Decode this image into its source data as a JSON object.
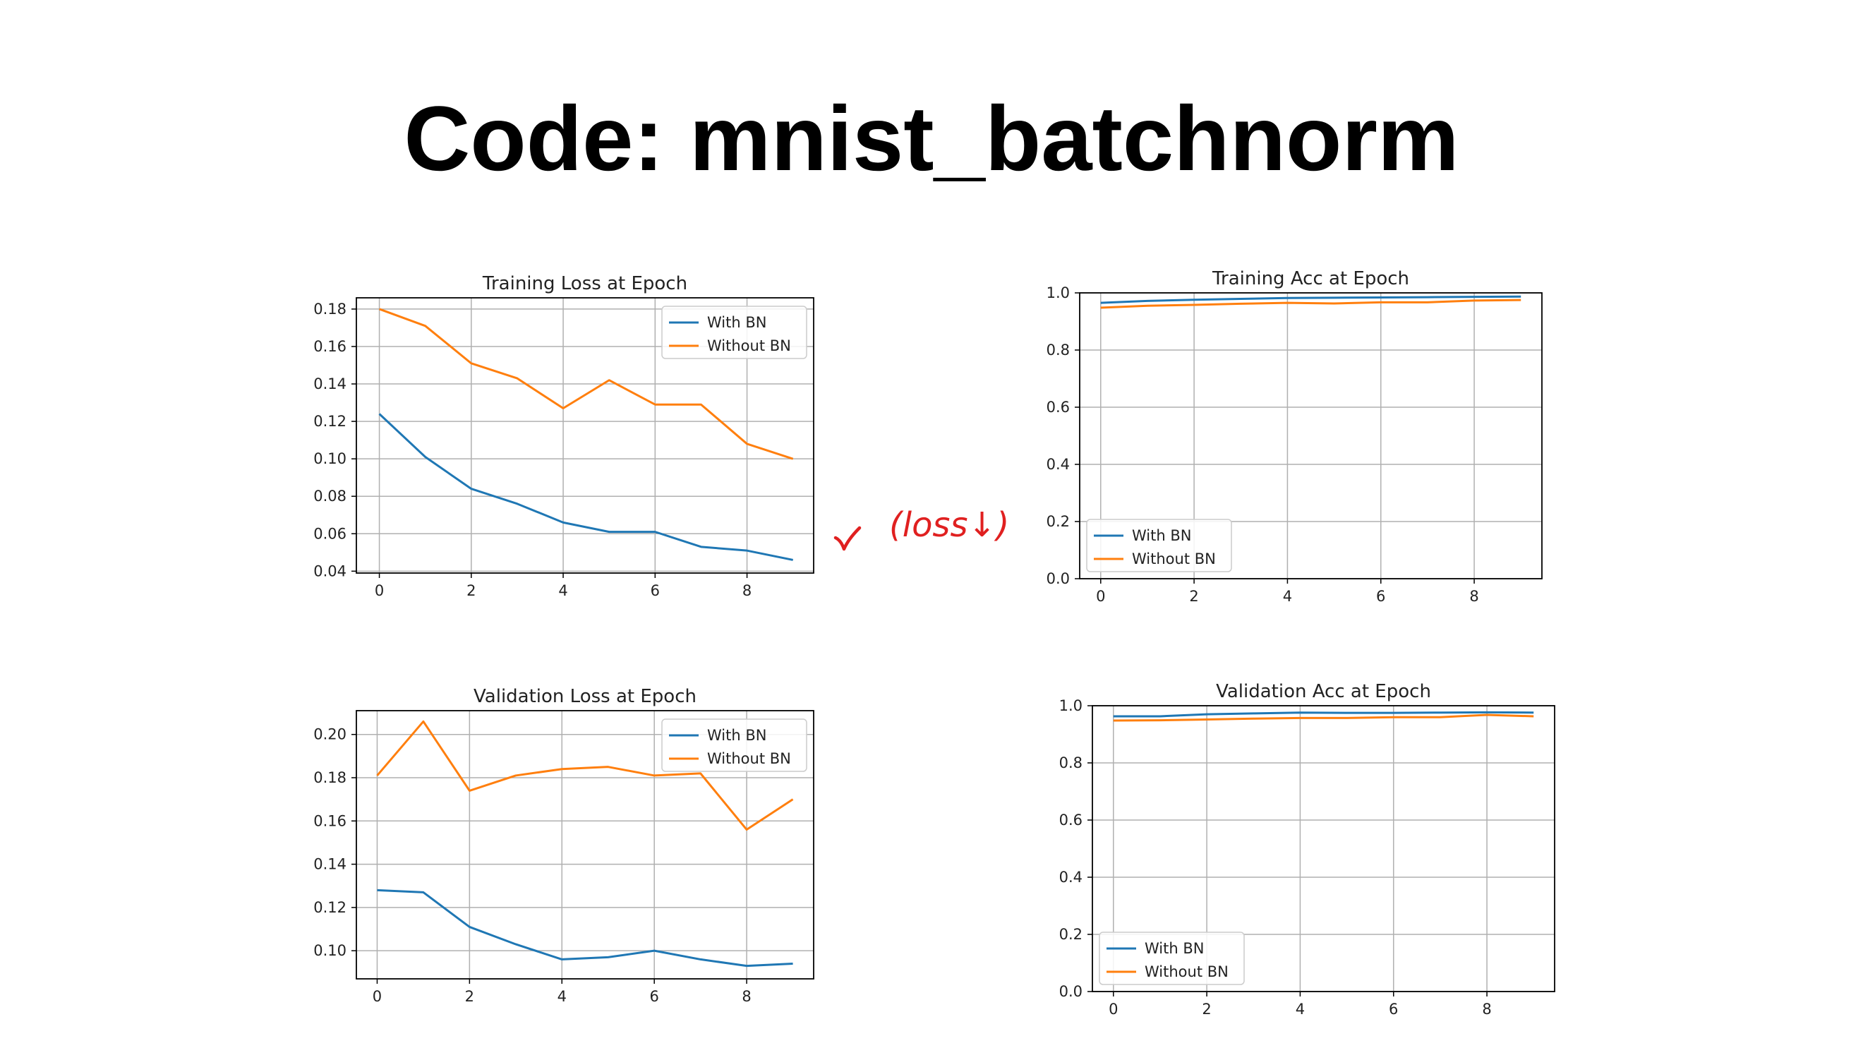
{
  "slide": {
    "title": "Code: mnist_batchnorm",
    "annotation": "(loss↓)"
  },
  "colors": {
    "with_bn": "#1f77b4",
    "without_bn": "#ff7f0e",
    "annotation": "#e02020",
    "grid": "#b0b0b0"
  },
  "chart_data": [
    {
      "type": "line",
      "title": "Training Loss at Epoch",
      "x": [
        0,
        1,
        2,
        3,
        4,
        5,
        6,
        7,
        8,
        9
      ],
      "series": [
        {
          "name": "With BN",
          "values": [
            0.124,
            0.101,
            0.084,
            0.076,
            0.066,
            0.061,
            0.061,
            0.053,
            0.051,
            0.046
          ]
        },
        {
          "name": "Without BN",
          "values": [
            0.18,
            0.171,
            0.151,
            0.143,
            0.127,
            0.142,
            0.129,
            0.129,
            0.108,
            0.1
          ]
        }
      ],
      "xlim": [
        -0.5,
        9.45
      ],
      "ylim": [
        0.039,
        0.186
      ],
      "xticks": [
        0,
        2,
        4,
        6,
        8
      ],
      "yticks": [
        0.04,
        0.06,
        0.08,
        0.1,
        0.12,
        0.14,
        0.16,
        0.18
      ],
      "ytick_labels": [
        "0.04",
        "0.06",
        "0.08",
        "0.10",
        "0.12",
        "0.14",
        "0.16",
        "0.18"
      ],
      "grid": true,
      "legend": "upper right"
    },
    {
      "type": "line",
      "title": "Training Acc at Epoch",
      "x": [
        0,
        1,
        2,
        3,
        4,
        5,
        6,
        7,
        8,
        9
      ],
      "series": [
        {
          "name": "With BN",
          "values": [
            0.965,
            0.972,
            0.976,
            0.979,
            0.982,
            0.983,
            0.984,
            0.985,
            0.986,
            0.987
          ]
        },
        {
          "name": "Without BN",
          "values": [
            0.948,
            0.955,
            0.958,
            0.962,
            0.965,
            0.963,
            0.967,
            0.967,
            0.973,
            0.975
          ]
        }
      ],
      "xlim": [
        -0.45,
        9.45
      ],
      "ylim": [
        0.0,
        1.0
      ],
      "xticks": [
        0,
        2,
        4,
        6,
        8
      ],
      "yticks": [
        0.0,
        0.2,
        0.4,
        0.6,
        0.8,
        1.0
      ],
      "ytick_labels": [
        "0.0",
        "0.2",
        "0.4",
        "0.6",
        "0.8",
        "1.0"
      ],
      "grid": true,
      "legend": "lower left"
    },
    {
      "type": "line",
      "title": "Validation Loss at Epoch",
      "x": [
        0,
        1,
        2,
        3,
        4,
        5,
        6,
        7,
        8,
        9
      ],
      "series": [
        {
          "name": "With BN",
          "values": [
            0.128,
            0.127,
            0.111,
            0.103,
            0.096,
            0.097,
            0.1,
            0.096,
            0.093,
            0.094
          ]
        },
        {
          "name": "Without BN",
          "values": [
            0.181,
            0.206,
            0.174,
            0.181,
            0.184,
            0.185,
            0.181,
            0.182,
            0.156,
            0.17
          ]
        }
      ],
      "xlim": [
        -0.45,
        9.45
      ],
      "ylim": [
        0.087,
        0.211
      ],
      "xticks": [
        0,
        2,
        4,
        6,
        8
      ],
      "yticks": [
        0.1,
        0.12,
        0.14,
        0.16,
        0.18,
        0.2
      ],
      "ytick_labels": [
        "0.10",
        "0.12",
        "0.14",
        "0.16",
        "0.18",
        "0.20"
      ],
      "grid": true,
      "legend": "upper right"
    },
    {
      "type": "line",
      "title": "Validation Acc at Epoch",
      "x": [
        0,
        1,
        2,
        3,
        4,
        5,
        6,
        7,
        8,
        9
      ],
      "series": [
        {
          "name": "With BN",
          "values": [
            0.963,
            0.963,
            0.97,
            0.973,
            0.976,
            0.975,
            0.975,
            0.976,
            0.977,
            0.976
          ]
        },
        {
          "name": "Without BN",
          "values": [
            0.948,
            0.949,
            0.952,
            0.955,
            0.957,
            0.957,
            0.96,
            0.96,
            0.968,
            0.963
          ]
        }
      ],
      "xlim": [
        -0.45,
        9.45
      ],
      "ylim": [
        0.0,
        1.0
      ],
      "xticks": [
        0,
        2,
        4,
        6,
        8
      ],
      "yticks": [
        0.0,
        0.2,
        0.4,
        0.6,
        0.8,
        1.0
      ],
      "ytick_labels": [
        "0.0",
        "0.2",
        "0.4",
        "0.6",
        "0.8",
        "1.0"
      ],
      "grid": true,
      "legend": "lower left"
    }
  ]
}
